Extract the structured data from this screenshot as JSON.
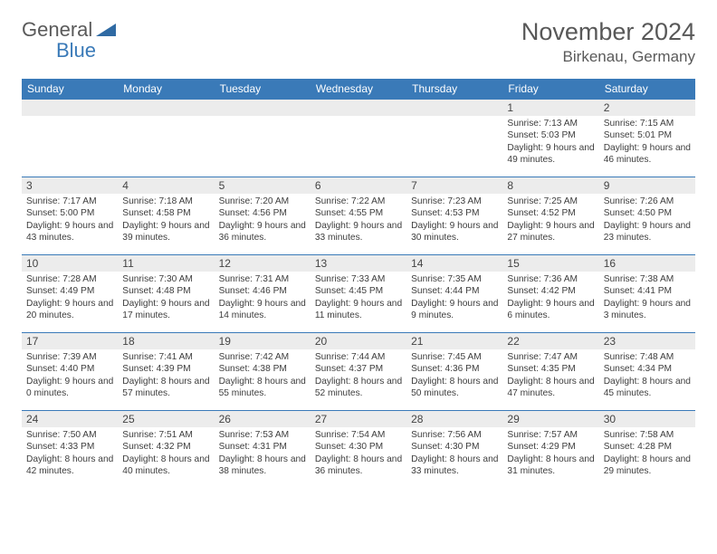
{
  "logo": {
    "text1": "General",
    "text2": "Blue"
  },
  "title": "November 2024",
  "location": "Birkenau, Germany",
  "colors": {
    "header_bg": "#3a7ab8",
    "header_fg": "#ffffff",
    "daynum_bg": "#ececec",
    "border": "#3a7ab8",
    "text": "#3d3d3d",
    "title": "#585858"
  },
  "weekdays": [
    "Sunday",
    "Monday",
    "Tuesday",
    "Wednesday",
    "Thursday",
    "Friday",
    "Saturday"
  ],
  "weeks": [
    [
      null,
      null,
      null,
      null,
      null,
      {
        "n": "1",
        "sr": "7:13 AM",
        "ss": "5:03 PM",
        "dl": "9 hours and 49 minutes."
      },
      {
        "n": "2",
        "sr": "7:15 AM",
        "ss": "5:01 PM",
        "dl": "9 hours and 46 minutes."
      }
    ],
    [
      {
        "n": "3",
        "sr": "7:17 AM",
        "ss": "5:00 PM",
        "dl": "9 hours and 43 minutes."
      },
      {
        "n": "4",
        "sr": "7:18 AM",
        "ss": "4:58 PM",
        "dl": "9 hours and 39 minutes."
      },
      {
        "n": "5",
        "sr": "7:20 AM",
        "ss": "4:56 PM",
        "dl": "9 hours and 36 minutes."
      },
      {
        "n": "6",
        "sr": "7:22 AM",
        "ss": "4:55 PM",
        "dl": "9 hours and 33 minutes."
      },
      {
        "n": "7",
        "sr": "7:23 AM",
        "ss": "4:53 PM",
        "dl": "9 hours and 30 minutes."
      },
      {
        "n": "8",
        "sr": "7:25 AM",
        "ss": "4:52 PM",
        "dl": "9 hours and 27 minutes."
      },
      {
        "n": "9",
        "sr": "7:26 AM",
        "ss": "4:50 PM",
        "dl": "9 hours and 23 minutes."
      }
    ],
    [
      {
        "n": "10",
        "sr": "7:28 AM",
        "ss": "4:49 PM",
        "dl": "9 hours and 20 minutes."
      },
      {
        "n": "11",
        "sr": "7:30 AM",
        "ss": "4:48 PM",
        "dl": "9 hours and 17 minutes."
      },
      {
        "n": "12",
        "sr": "7:31 AM",
        "ss": "4:46 PM",
        "dl": "9 hours and 14 minutes."
      },
      {
        "n": "13",
        "sr": "7:33 AM",
        "ss": "4:45 PM",
        "dl": "9 hours and 11 minutes."
      },
      {
        "n": "14",
        "sr": "7:35 AM",
        "ss": "4:44 PM",
        "dl": "9 hours and 9 minutes."
      },
      {
        "n": "15",
        "sr": "7:36 AM",
        "ss": "4:42 PM",
        "dl": "9 hours and 6 minutes."
      },
      {
        "n": "16",
        "sr": "7:38 AM",
        "ss": "4:41 PM",
        "dl": "9 hours and 3 minutes."
      }
    ],
    [
      {
        "n": "17",
        "sr": "7:39 AM",
        "ss": "4:40 PM",
        "dl": "9 hours and 0 minutes."
      },
      {
        "n": "18",
        "sr": "7:41 AM",
        "ss": "4:39 PM",
        "dl": "8 hours and 57 minutes."
      },
      {
        "n": "19",
        "sr": "7:42 AM",
        "ss": "4:38 PM",
        "dl": "8 hours and 55 minutes."
      },
      {
        "n": "20",
        "sr": "7:44 AM",
        "ss": "4:37 PM",
        "dl": "8 hours and 52 minutes."
      },
      {
        "n": "21",
        "sr": "7:45 AM",
        "ss": "4:36 PM",
        "dl": "8 hours and 50 minutes."
      },
      {
        "n": "22",
        "sr": "7:47 AM",
        "ss": "4:35 PM",
        "dl": "8 hours and 47 minutes."
      },
      {
        "n": "23",
        "sr": "7:48 AM",
        "ss": "4:34 PM",
        "dl": "8 hours and 45 minutes."
      }
    ],
    [
      {
        "n": "24",
        "sr": "7:50 AM",
        "ss": "4:33 PM",
        "dl": "8 hours and 42 minutes."
      },
      {
        "n": "25",
        "sr": "7:51 AM",
        "ss": "4:32 PM",
        "dl": "8 hours and 40 minutes."
      },
      {
        "n": "26",
        "sr": "7:53 AM",
        "ss": "4:31 PM",
        "dl": "8 hours and 38 minutes."
      },
      {
        "n": "27",
        "sr": "7:54 AM",
        "ss": "4:30 PM",
        "dl": "8 hours and 36 minutes."
      },
      {
        "n": "28",
        "sr": "7:56 AM",
        "ss": "4:30 PM",
        "dl": "8 hours and 33 minutes."
      },
      {
        "n": "29",
        "sr": "7:57 AM",
        "ss": "4:29 PM",
        "dl": "8 hours and 31 minutes."
      },
      {
        "n": "30",
        "sr": "7:58 AM",
        "ss": "4:28 PM",
        "dl": "8 hours and 29 minutes."
      }
    ]
  ],
  "labels": {
    "sunrise": "Sunrise:",
    "sunset": "Sunset:",
    "daylight": "Daylight:"
  }
}
